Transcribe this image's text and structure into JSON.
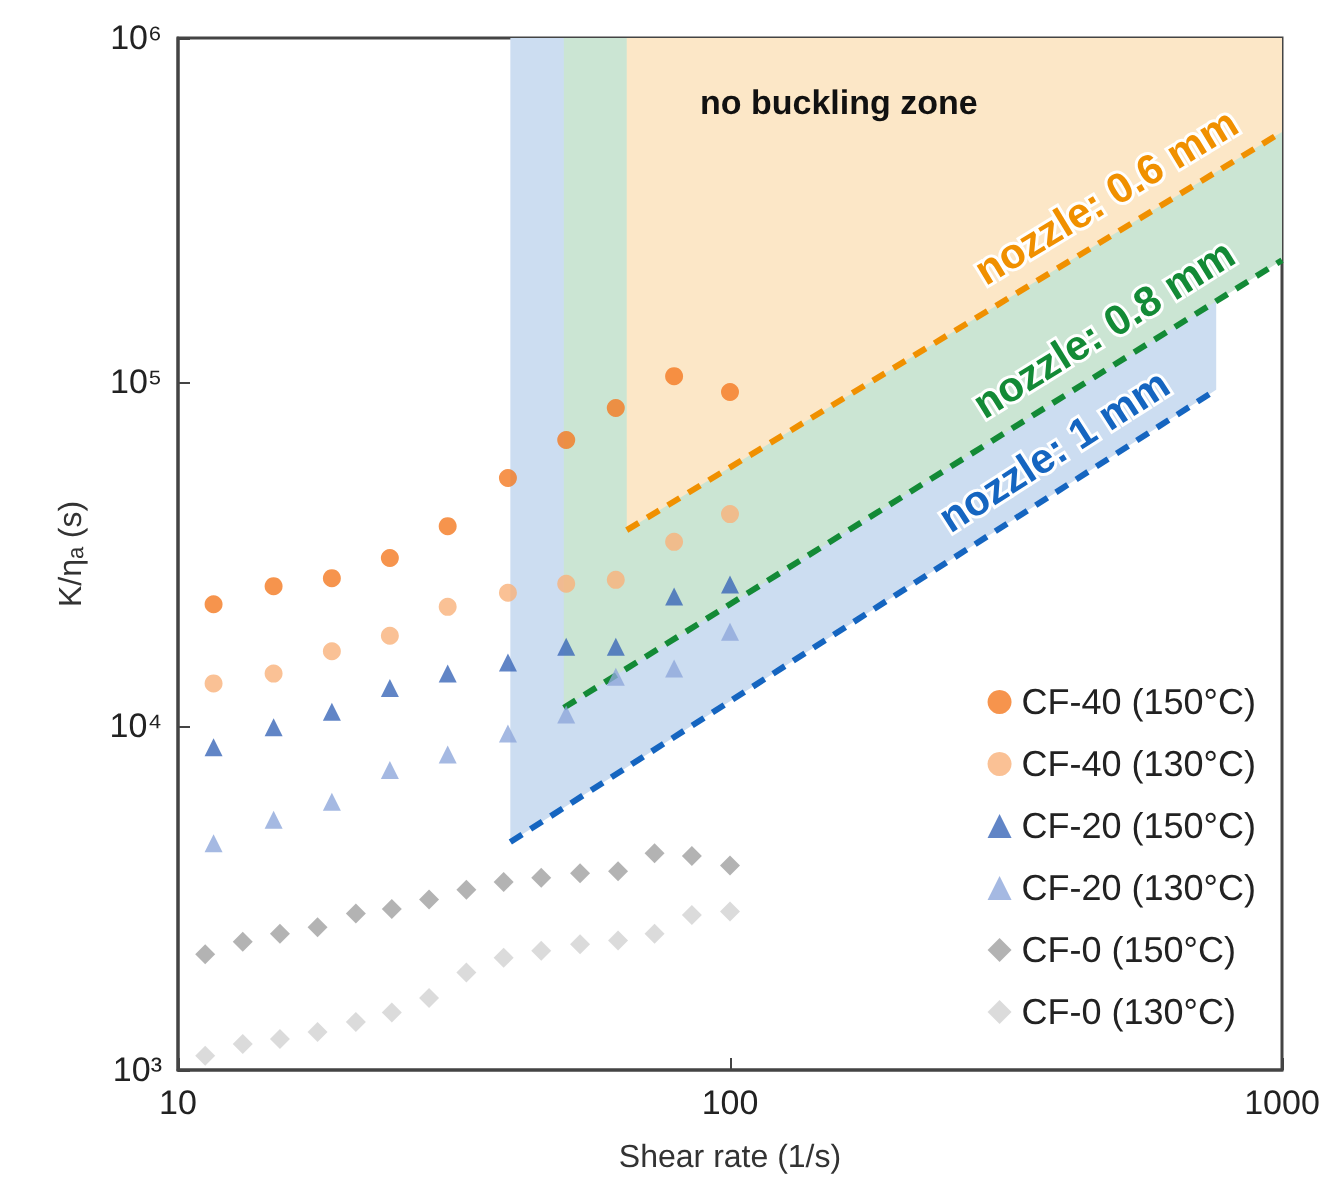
{
  "chart_data": {
    "type": "scatter",
    "xlabel": "Shear rate (1/s)",
    "ylabel": "K/ηₐ (s)",
    "log": "xy",
    "xlim": [
      10,
      1000
    ],
    "xticks": [
      10,
      100,
      1000
    ],
    "ylim": [
      1000,
      1000000
    ],
    "yticks": [
      {
        "value": 1000,
        "label": "10³"
      },
      {
        "value": 10000,
        "label": "10⁴"
      },
      {
        "value": 100000,
        "label": "10⁵"
      },
      {
        "value": 1000000,
        "label": "10⁶"
      }
    ],
    "grid": false,
    "legend": "bottom right",
    "annotations": [
      "no buckling zone"
    ],
    "series": [
      {
        "name": "nozzle: 1 mm",
        "type": "line",
        "color": "#1565c0",
        "line_style": "dashed",
        "marker": "none",
        "x": [
          40,
          760
        ],
        "values": [
          4600,
          95000
        ],
        "lower": [
          4600,
          95000
        ],
        "upper": [
          1000000,
          1000000
        ]
      },
      {
        "name": "nozzle: 0.8 mm",
        "type": "line",
        "color": "#138a36",
        "line_style": "dashed",
        "marker": "none",
        "x": [
          50,
          1000
        ],
        "values": [
          11300,
          226000
        ],
        "lower": [
          11300,
          226000
        ],
        "upper": [
          1000000,
          1000000
        ]
      },
      {
        "name": "nozzle: 0.6 mm",
        "type": "line",
        "color": "#f09000",
        "line_style": "dashed",
        "marker": "none",
        "x": [
          65,
          1000
        ],
        "values": [
          37100,
          533000
        ],
        "lower": [
          37100,
          533000
        ],
        "upper": [
          1000000,
          1000000
        ]
      },
      {
        "name": "CF-40 (150°C)",
        "color": "#f47920",
        "marker": "circle",
        "x": [
          11.6,
          14.9,
          19,
          24.2,
          30.8,
          39.6,
          50.5,
          62.1,
          79.2,
          100
        ],
        "values": [
          22600,
          25500,
          26900,
          30800,
          38100,
          52600,
          67800,
          84000,
          104000,
          93500
        ]
      },
      {
        "name": "CF-40 (130°C)",
        "color": "#f9b27a",
        "marker": "circle",
        "x": [
          11.6,
          14.9,
          19,
          24.2,
          30.8,
          39.6,
          50.5,
          62.1,
          79.2,
          100
        ],
        "values": [
          13300,
          14200,
          16500,
          18300,
          22200,
          24400,
          25900,
          26600,
          34300,
          41300
        ]
      },
      {
        "name": "CF-20 (150°C)",
        "color": "#3a66b8",
        "marker": "triangle",
        "x": [
          11.6,
          14.9,
          19,
          24.2,
          30.8,
          39.6,
          50.5,
          62.1,
          79.2,
          100
        ],
        "values": [
          8670,
          9910,
          11000,
          12900,
          14200,
          15300,
          17000,
          17000,
          23800,
          25800
        ]
      },
      {
        "name": "CF-20 (130°C)",
        "color": "#8fa8db",
        "marker": "triangle",
        "x": [
          11.6,
          14.9,
          19,
          24.2,
          30.8,
          39.6,
          50.5,
          62.1,
          79.2,
          100
        ],
        "values": [
          4560,
          5340,
          6020,
          7450,
          8260,
          9510,
          10800,
          13900,
          14700,
          18800
        ]
      },
      {
        "name": "CF-0 (150°C)",
        "color": "#a0a0a0",
        "marker": "diamond",
        "x": [
          11.2,
          13.1,
          15.3,
          17.9,
          21,
          24.4,
          28.5,
          33.3,
          38.9,
          45.5,
          53.5,
          62.7,
          73,
          85.3,
          100
        ],
        "values": [
          2170,
          2360,
          2490,
          2600,
          2850,
          2940,
          3130,
          3340,
          3520,
          3620,
          3730,
          3780,
          4270,
          4190,
          3930
        ]
      },
      {
        "name": "CF-0 (130°C)",
        "color": "#d2d2d2",
        "marker": "diamond",
        "x": [
          11.2,
          13.1,
          15.3,
          17.9,
          21,
          24.4,
          28.5,
          33.3,
          38.9,
          45.5,
          53.5,
          62.7,
          73,
          85.3,
          100
        ],
        "values": [
          1100,
          1190,
          1230,
          1290,
          1380,
          1470,
          1620,
          1920,
          2120,
          2220,
          2320,
          2380,
          2490,
          2820,
          2890
        ]
      }
    ]
  }
}
